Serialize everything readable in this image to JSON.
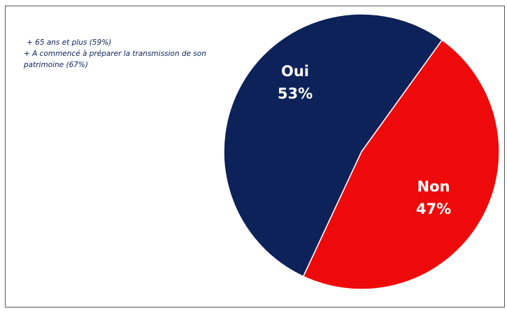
{
  "chart_data": {
    "type": "pie",
    "annotations": [
      "+ 65 ans et plus (59%)",
      "+ A commencé à préparer la transmission de son",
      "patrimoine (67%)"
    ],
    "categories": [
      "Oui",
      "Non"
    ],
    "values": [
      53,
      47
    ],
    "value_labels": [
      "53%",
      "47%"
    ],
    "colors": [
      "#0c2258",
      "#ee0a0a"
    ]
  }
}
